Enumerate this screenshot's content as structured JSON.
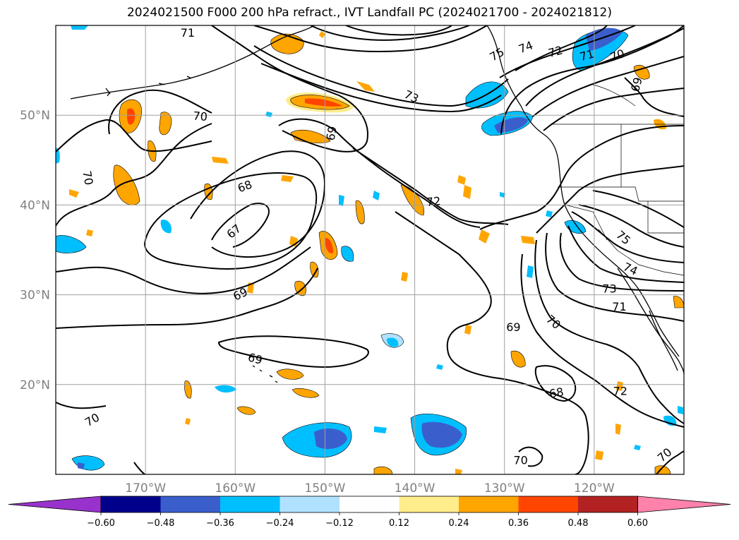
{
  "title": "2024021500 F000 200 hPa refract., IVT Landfall PC (2024021700 - 2024021812)",
  "map": {
    "projection": "plate-carree",
    "lon_range_deg": [
      -180,
      -110
    ],
    "lat_range_deg": [
      10,
      60
    ],
    "gridlines": true,
    "lat_ticks": [
      {
        "label": "50°N",
        "lat": 50
      },
      {
        "label": "40°N",
        "lat": 40
      },
      {
        "label": "30°N",
        "lat": 30
      },
      {
        "label": "20°N",
        "lat": 20
      }
    ],
    "lon_ticks": [
      {
        "label": "170°W",
        "lon": -170
      },
      {
        "label": "160°W",
        "lon": -160
      },
      {
        "label": "150°W",
        "lon": -150
      },
      {
        "label": "140°W",
        "lon": -140
      },
      {
        "label": "130°W",
        "lon": -130
      },
      {
        "label": "120°W",
        "lon": -120
      }
    ],
    "contour_labels": [
      {
        "text": "71",
        "lon": -165.3,
        "lat": 59.1
      },
      {
        "text": "70",
        "lon": -163.9,
        "lat": 49.8,
        "rot": 5
      },
      {
        "text": "70",
        "lon": -176.5,
        "lat": 43.0,
        "rot": 80
      },
      {
        "text": "68",
        "lon": -158.9,
        "lat": 42.0,
        "rot": -20
      },
      {
        "text": "67",
        "lon": -160.1,
        "lat": 37.0,
        "rot": -40
      },
      {
        "text": "69",
        "lon": -149.4,
        "lat": 48.0,
        "rot": 100
      },
      {
        "text": "73",
        "lon": -140.4,
        "lat": 52.0,
        "rot": 25
      },
      {
        "text": "72",
        "lon": -137.9,
        "lat": 40.3,
        "rot": -5
      },
      {
        "text": "69",
        "lon": -159.4,
        "lat": 30.0,
        "rot": -25
      },
      {
        "text": "69",
        "lon": -157.8,
        "lat": 22.8,
        "rot": 15
      },
      {
        "text": "70",
        "lon": -175.9,
        "lat": 16.0,
        "rot": -30
      },
      {
        "text": "69",
        "lon": -129.0,
        "lat": 26.3
      },
      {
        "text": "70",
        "lon": -124.6,
        "lat": 26.9,
        "rot": 40
      },
      {
        "text": "68",
        "lon": -124.2,
        "lat": 19.0,
        "rot": -10
      },
      {
        "text": "70",
        "lon": -128.2,
        "lat": 11.5
      },
      {
        "text": "72",
        "lon": -117.1,
        "lat": 19.2
      },
      {
        "text": "70",
        "lon": -112.1,
        "lat": 12.1,
        "rot": -40
      },
      {
        "text": "71",
        "lon": -117.2,
        "lat": 28.6
      },
      {
        "text": "73",
        "lon": -118.3,
        "lat": 30.6
      },
      {
        "text": "74",
        "lon": -116.0,
        "lat": 32.8,
        "rot": 25
      },
      {
        "text": "75",
        "lon": -116.8,
        "lat": 36.3,
        "rot": 40
      },
      {
        "text": "75",
        "lon": -130.8,
        "lat": 56.7,
        "rot": -30
      },
      {
        "text": "74",
        "lon": -127.6,
        "lat": 57.5,
        "rot": -20
      },
      {
        "text": "72",
        "lon": -124.3,
        "lat": 57.0,
        "rot": -15
      },
      {
        "text": "71",
        "lon": -120.8,
        "lat": 56.6,
        "rot": -15
      },
      {
        "text": "70",
        "lon": -117.4,
        "lat": 56.6,
        "rot": -20
      },
      {
        "text": "69",
        "lon": -115.2,
        "lat": 53.4,
        "rot": -75
      }
    ]
  },
  "colorbar": {
    "ticks": [
      "−0.60",
      "−0.48",
      "−0.36",
      "−0.24",
      "−0.12",
      "0.12",
      "0.24",
      "0.36",
      "0.48",
      "0.60"
    ],
    "colors": [
      "#9932cc",
      "#00008b",
      "#3a5fcd",
      "#00bfff",
      "#b0e2ff",
      "#ffffff",
      "#ffec8b",
      "#ffa500",
      "#ff4500",
      "#b22222",
      "#ff82ab"
    ]
  },
  "fill_colors": {
    "orange": "#ffa500",
    "light_yellow": "#ffec8b",
    "red_orange": "#ff4500",
    "deep_sky_blue": "#00bfff",
    "light_sky_blue": "#b0e2ff",
    "royal_blue": "#3a5fcd"
  }
}
